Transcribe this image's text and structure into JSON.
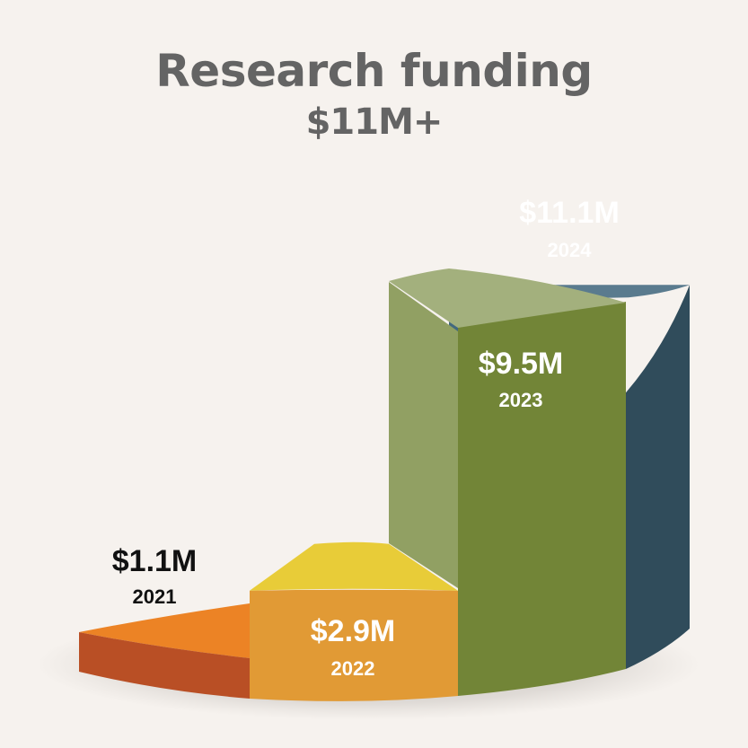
{
  "header": {
    "title": "Research funding",
    "total": "$11M+"
  },
  "colors": {
    "background": "#f6f2ee",
    "title": "#646464",
    "y2021": "#e37f2a",
    "y2022": "#e19a35",
    "y2023": "#728537",
    "y2024": "#43697f"
  },
  "chart_data": {
    "type": "bar",
    "title": "Research funding",
    "subtitle": "$11M+",
    "unit": "$M",
    "categories": [
      "2021",
      "2022",
      "2023",
      "2024"
    ],
    "values": [
      1.1,
      2.9,
      9.5,
      11.1
    ],
    "value_labels": [
      "$1.1M",
      "$2.9M",
      "$9.5M",
      "$11.1M"
    ],
    "style": "3d stepped cylinder",
    "grid": false,
    "legend": "none"
  }
}
